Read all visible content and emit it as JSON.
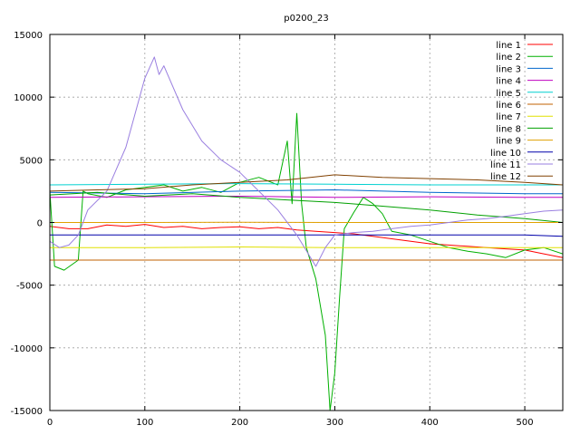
{
  "chart_data": {
    "type": "line",
    "title": "p0200_23",
    "xlabel": "",
    "ylabel": "",
    "xlim": [
      0,
      540
    ],
    "ylim": [
      -15000,
      15000
    ],
    "x_ticks": [
      0,
      100,
      200,
      300,
      400,
      500
    ],
    "y_ticks": [
      -15000,
      -10000,
      -5000,
      0,
      5000,
      10000,
      15000
    ],
    "grid": true,
    "legend_position": "top-right",
    "series": [
      {
        "name": "line 1",
        "color": "#ff0000",
        "x": [
          0,
          20,
          40,
          60,
          80,
          100,
          120,
          140,
          160,
          180,
          200,
          220,
          240,
          260,
          280,
          300,
          320,
          340,
          360,
          380,
          400,
          420,
          440,
          460,
          480,
          500,
          520,
          540
        ],
        "y": [
          -300,
          -500,
          -500,
          -200,
          -300,
          -150,
          -400,
          -300,
          -500,
          -400,
          -350,
          -500,
          -400,
          -600,
          -700,
          -800,
          -900,
          -1100,
          -1300,
          -1500,
          -1700,
          -1800,
          -1900,
          -2000,
          -2100,
          -2200,
          -2500,
          -2800
        ]
      },
      {
        "name": "line 2",
        "color": "#00b000",
        "x": [
          0,
          5,
          15,
          30,
          35,
          40,
          60,
          80,
          100,
          120,
          140,
          160,
          180,
          200,
          220,
          240,
          250,
          255,
          260,
          265,
          270,
          280,
          290,
          295,
          300,
          305,
          310,
          320,
          330,
          340,
          350,
          360,
          380,
          400,
          420,
          440,
          460,
          480,
          500,
          520,
          540
        ],
        "y": [
          2500,
          -3500,
          -3800,
          -3000,
          2500,
          2300,
          2000,
          2600,
          2800,
          3000,
          2500,
          2800,
          2400,
          3200,
          3600,
          3000,
          6500,
          1500,
          8700,
          1500,
          -2000,
          -4500,
          -9000,
          -15000,
          -12000,
          -6000,
          -500,
          800,
          2000,
          1500,
          700,
          -700,
          -1000,
          -1500,
          -2000,
          -2300,
          -2500,
          -2800,
          -2200,
          -2000,
          -2500
        ]
      },
      {
        "name": "line 3",
        "color": "#0066cc",
        "x": [
          0,
          100,
          200,
          300,
          400,
          500,
          540
        ],
        "y": [
          2400,
          2300,
          2500,
          2600,
          2400,
          2300,
          2300
        ]
      },
      {
        "name": "line 4",
        "color": "#c000c0",
        "x": [
          0,
          100,
          200,
          300,
          400,
          500,
          540
        ],
        "y": [
          2000,
          2050,
          2100,
          2000,
          2050,
          2000,
          2000
        ]
      },
      {
        "name": "line 5",
        "color": "#00d0d0",
        "x": [
          0,
          100,
          200,
          300,
          400,
          500,
          540
        ],
        "y": [
          3000,
          3050,
          3100,
          3050,
          3000,
          3000,
          3000
        ]
      },
      {
        "name": "line 6",
        "color": "#c06000",
        "x": [
          0,
          100,
          200,
          300,
          400,
          500,
          540
        ],
        "y": [
          -3000,
          -3000,
          -3000,
          -3000,
          -3000,
          -3000,
          -3000
        ]
      },
      {
        "name": "line 7",
        "color": "#e0e000",
        "x": [
          0,
          100,
          200,
          300,
          400,
          500,
          540
        ],
        "y": [
          -2000,
          -2000,
          -1950,
          -2000,
          -2000,
          -2000,
          -2000
        ]
      },
      {
        "name": "line 8",
        "color": "#00a000",
        "x": [
          0,
          50,
          100,
          150,
          200,
          250,
          300,
          350,
          400,
          450,
          500,
          540
        ],
        "y": [
          2200,
          2400,
          2100,
          2300,
          2000,
          1800,
          1600,
          1300,
          1000,
          600,
          300,
          0
        ]
      },
      {
        "name": "line 9",
        "color": "#e0a000",
        "x": [
          0,
          100,
          200,
          300,
          400,
          500,
          540
        ],
        "y": [
          0,
          0,
          20,
          0,
          0,
          0,
          0
        ]
      },
      {
        "name": "line 10",
        "color": "#0000aa",
        "x": [
          0,
          100,
          200,
          300,
          400,
          500,
          540
        ],
        "y": [
          -1000,
          -1000,
          -1000,
          -1000,
          -1000,
          -1000,
          -1100
        ]
      },
      {
        "name": "line 11",
        "color": "#9a7fe0",
        "x": [
          0,
          10,
          20,
          30,
          40,
          60,
          80,
          100,
          110,
          115,
          120,
          140,
          160,
          180,
          200,
          220,
          240,
          260,
          280,
          290,
          300,
          320,
          340,
          360,
          380,
          400,
          420,
          440,
          460,
          480,
          500,
          520,
          540
        ],
        "y": [
          -1500,
          -2000,
          -1800,
          -1000,
          1000,
          2500,
          6000,
          11500,
          13200,
          11800,
          12500,
          9000,
          6500,
          5000,
          4000,
          2500,
          1000,
          -1000,
          -3500,
          -2000,
          -1000,
          -800,
          -700,
          -500,
          -300,
          -200,
          0,
          200,
          300,
          500,
          700,
          900,
          1000
        ]
      },
      {
        "name": "line 12",
        "color": "#804000",
        "x": [
          0,
          50,
          100,
          150,
          200,
          250,
          300,
          350,
          400,
          450,
          500,
          540
        ],
        "y": [
          2500,
          2600,
          2700,
          3000,
          3200,
          3400,
          3800,
          3600,
          3500,
          3400,
          3200,
          3000
        ]
      }
    ]
  }
}
